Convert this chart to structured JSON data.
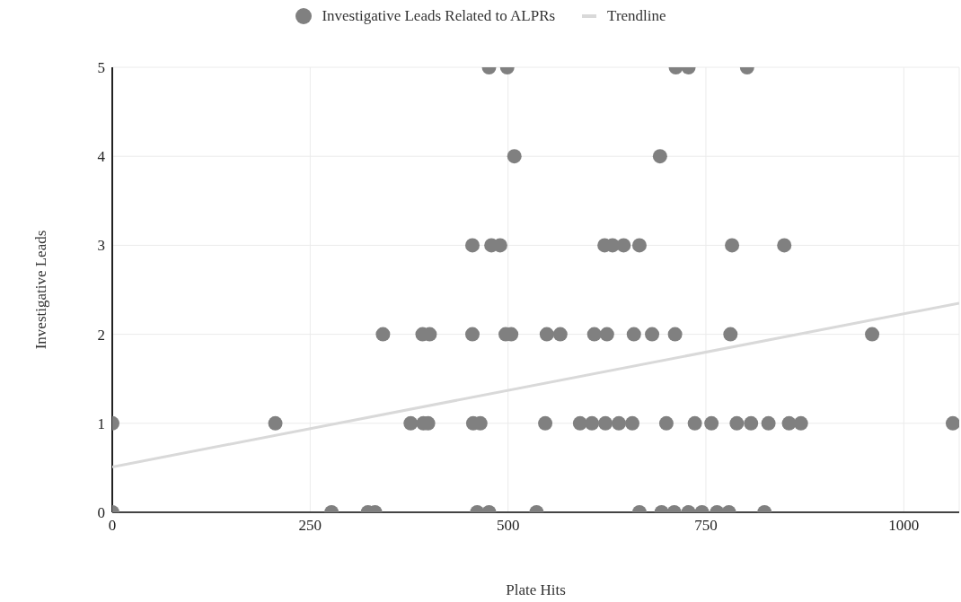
{
  "chart_data": {
    "type": "scatter",
    "xlabel": "Plate Hits",
    "ylabel": "Investigative Leads",
    "xlim": [
      0,
      1070
    ],
    "xticks": [
      0,
      250,
      500,
      750,
      1000
    ],
    "ylim": [
      0,
      5
    ],
    "yticks": [
      0,
      1,
      2,
      3,
      4,
      5
    ],
    "grid": true,
    "legend": "top",
    "marker": "circle",
    "series": [
      {
        "name": "Investigative Leads Related to ALPRs",
        "color": "#808080",
        "x": [
          0,
          277,
          323,
          332,
          461,
          476,
          536,
          666,
          694,
          710,
          728,
          745,
          764,
          779,
          824,
          0,
          206,
          377,
          393,
          399,
          456,
          465,
          547,
          591,
          606,
          623,
          640,
          657,
          700,
          736,
          757,
          789,
          807,
          829,
          855,
          870,
          1062,
          342,
          392,
          401,
          455,
          497,
          504,
          549,
          566,
          609,
          625,
          659,
          682,
          711,
          781,
          960,
          455,
          479,
          490,
          622,
          632,
          646,
          666,
          783,
          849,
          508,
          692,
          476,
          499,
          712,
          728,
          802
        ],
        "values": [
          0,
          0,
          0,
          0,
          0,
          0,
          0,
          0,
          0,
          0,
          0,
          0,
          0,
          0,
          0,
          1,
          1,
          1,
          1,
          1,
          1,
          1,
          1,
          1,
          1,
          1,
          1,
          1,
          1,
          1,
          1,
          1,
          1,
          1,
          1,
          1,
          1,
          2,
          2,
          2,
          2,
          2,
          2,
          2,
          2,
          2,
          2,
          2,
          2,
          2,
          2,
          2,
          3,
          3,
          3,
          3,
          3,
          3,
          3,
          3,
          3,
          4,
          4,
          5,
          5,
          5,
          5,
          5
        ]
      },
      {
        "name": "Trendline",
        "type": "line",
        "marker": "none",
        "color": "#d9d9d9",
        "x": [
          0,
          1070
        ],
        "values": [
          0.51,
          2.35
        ]
      }
    ]
  }
}
